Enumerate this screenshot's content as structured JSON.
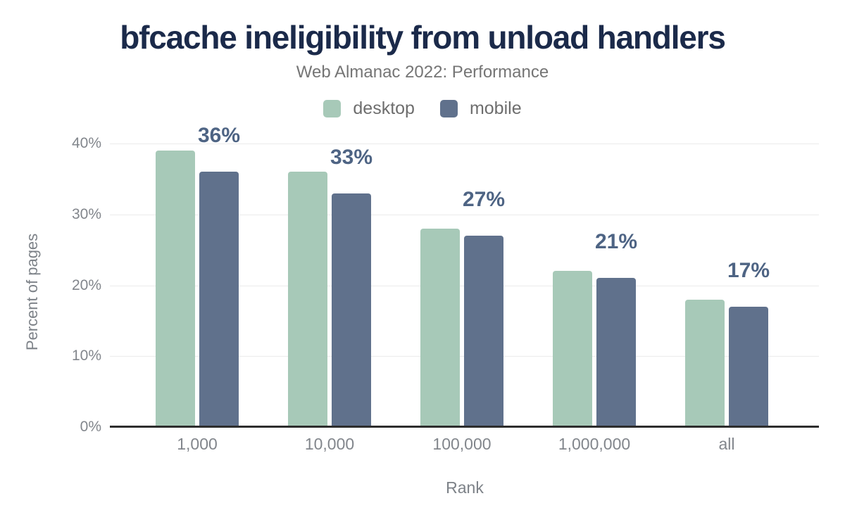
{
  "chart_data": {
    "type": "bar",
    "title": "bfcache ineligibility from unload handlers",
    "subtitle": "Web Almanac 2022: Performance",
    "xlabel": "Rank",
    "ylabel": "Percent of pages",
    "categories": [
      "1,000",
      "10,000",
      "100,000",
      "1,000,000",
      "all"
    ],
    "series": [
      {
        "name": "desktop",
        "color": "#a7c9b8",
        "values": [
          39,
          36,
          28,
          22,
          18
        ]
      },
      {
        "name": "mobile",
        "color": "#60718c",
        "values": [
          36,
          33,
          27,
          21,
          17
        ]
      }
    ],
    "data_labels": {
      "attached_to": "mobile",
      "values": [
        "36%",
        "33%",
        "27%",
        "21%",
        "17%"
      ]
    },
    "ylim": [
      0,
      40
    ],
    "yticks": [
      {
        "value": 0,
        "label": "0%"
      },
      {
        "value": 10,
        "label": "10%"
      },
      {
        "value": 20,
        "label": "20%"
      },
      {
        "value": 30,
        "label": "30%"
      },
      {
        "value": 40,
        "label": "40%"
      }
    ],
    "grid": true,
    "legend_position": "top",
    "colors": {
      "title": "#1b2a4a",
      "subtitle": "#757575",
      "data_label": "#4e6484",
      "axis_text": "#82868c",
      "legend_text": "#6e6e6e",
      "gridline": "#ebebeb",
      "axis_line": "#2d2d2d",
      "background": "#ffffff"
    }
  }
}
